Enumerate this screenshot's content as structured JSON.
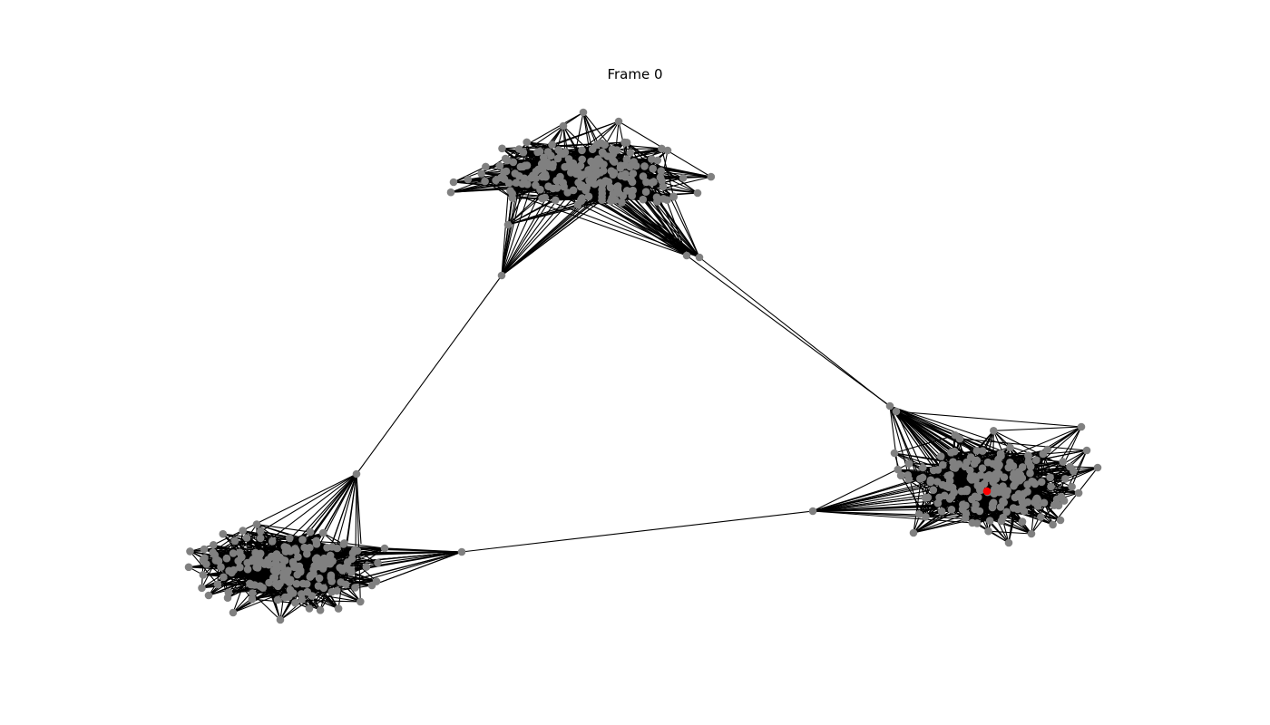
{
  "title": "Frame 0",
  "colors": {
    "node": "#808080",
    "highlight_node": "#ff0000",
    "edge": "#000000",
    "background": "#ffffff"
  },
  "graph": {
    "clusters": 3,
    "highlighted_nodes": 1
  }
}
